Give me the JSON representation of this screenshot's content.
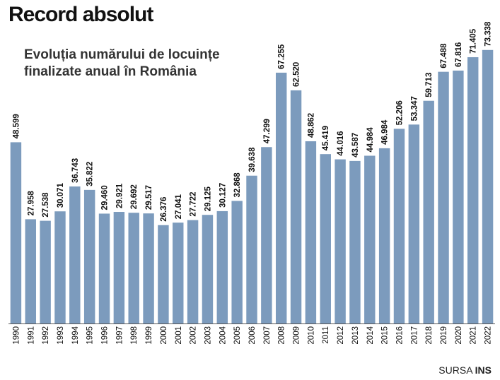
{
  "header": {
    "title": "Record absolut",
    "subtitle": "Evoluția numărului de locuințe finalizate anual în România"
  },
  "footer": {
    "source_prefix": "SURSA",
    "source_name": "INS"
  },
  "colors": {
    "bar": "#7c9bbd",
    "baseline": "#555555",
    "label": "#111111"
  },
  "chart_data": {
    "type": "bar",
    "title": "Record absolut",
    "subtitle": "Evoluția numărului de locuințe finalizate anual în România",
    "xlabel": "",
    "ylabel": "",
    "categories": [
      "1990",
      "1991",
      "1992",
      "1993",
      "1994",
      "1995",
      "1996",
      "1997",
      "1998",
      "1999",
      "2000",
      "2001",
      "2002",
      "2003",
      "2004",
      "2005",
      "2006",
      "2007",
      "2008",
      "2009",
      "2010",
      "2011",
      "2012",
      "2013",
      "2014",
      "2015",
      "2016",
      "2017",
      "2018",
      "2019",
      "2020",
      "2021",
      "2022"
    ],
    "values": [
      48599,
      27958,
      27538,
      30071,
      36743,
      35822,
      29460,
      29921,
      29692,
      29517,
      26376,
      27041,
      27722,
      29125,
      30127,
      32868,
      39638,
      47299,
      67255,
      62520,
      48862,
      45419,
      44016,
      43587,
      44984,
      46984,
      52206,
      53347,
      59713,
      67488,
      67816,
      71405,
      73338
    ],
    "value_labels": [
      "48.599",
      "27.958",
      "27.538",
      "30.071",
      "36.743",
      "35.822",
      "29.460",
      "29.921",
      "29.692",
      "29.517",
      "26.376",
      "27.041",
      "27.722",
      "29.125",
      "30.127",
      "32.868",
      "39.638",
      "47.299",
      "67.255",
      "62.520",
      "48.862",
      "45.419",
      "44.016",
      "43.587",
      "44.984",
      "46.984",
      "52.206",
      "53.347",
      "59.713",
      "67.488",
      "67.816",
      "71.405",
      "73.338"
    ],
    "ylim": [
      0,
      75000
    ],
    "grid": false,
    "legend": "none"
  }
}
